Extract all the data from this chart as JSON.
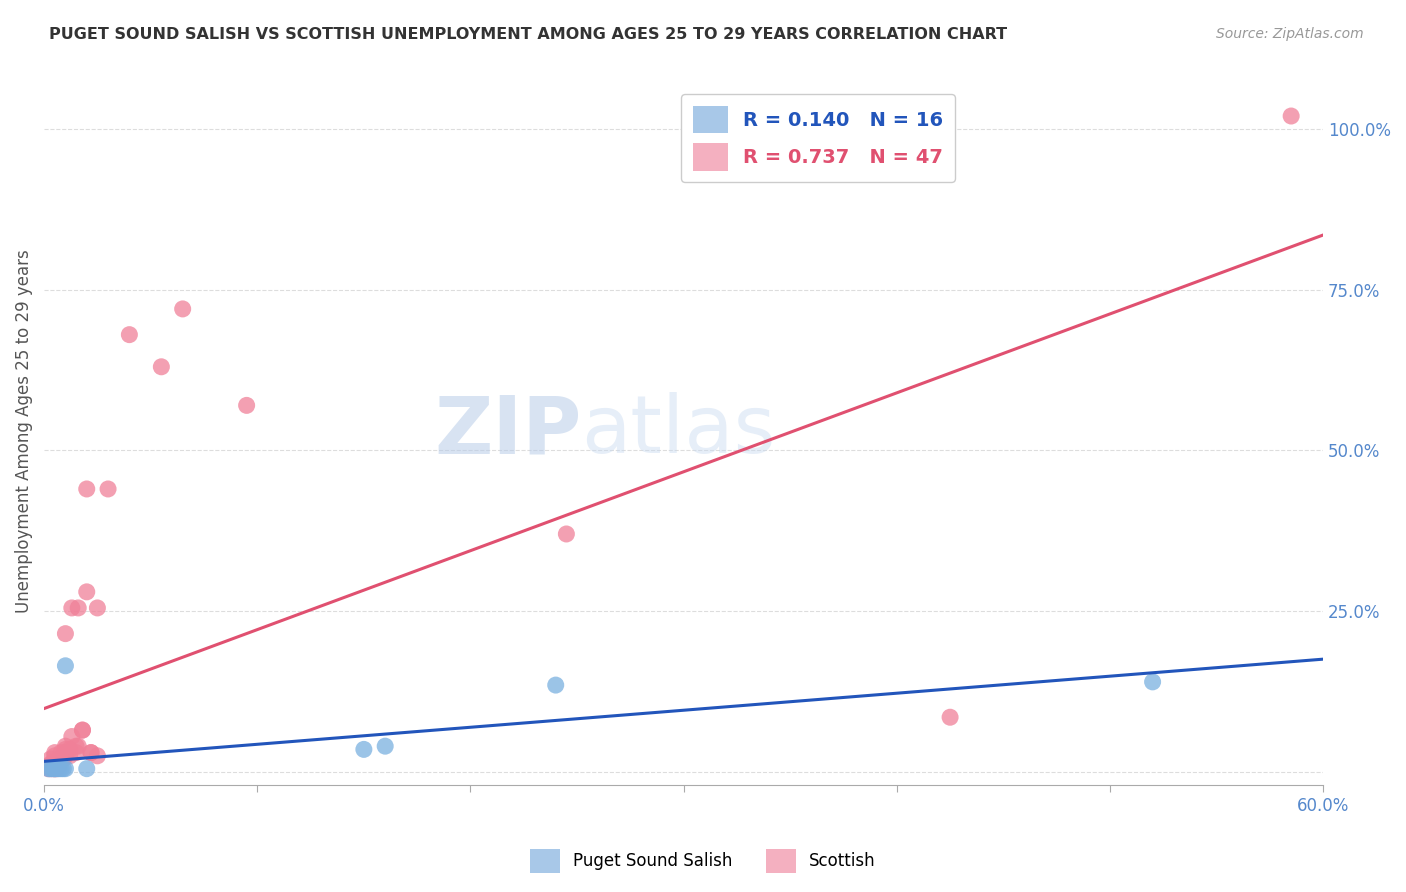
{
  "title": "PUGET SOUND SALISH VS SCOTTISH UNEMPLOYMENT AMONG AGES 25 TO 29 YEARS CORRELATION CHART",
  "source": "Source: ZipAtlas.com",
  "ylabel": "Unemployment Among Ages 25 to 29 years",
  "xlim": [
    0.0,
    0.6
  ],
  "ylim": [
    -0.02,
    1.08
  ],
  "x_ticks": [
    0.0,
    0.1,
    0.2,
    0.3,
    0.4,
    0.5,
    0.6
  ],
  "x_tick_labels": [
    "0.0%",
    "",
    "",
    "",
    "",
    "",
    "60.0%"
  ],
  "y_ticks": [
    0.0,
    0.25,
    0.5,
    0.75,
    1.0
  ],
  "y_tick_labels": [
    "",
    "25.0%",
    "50.0%",
    "75.0%",
    "100.0%"
  ],
  "puget_color": "#7ab0e0",
  "scottish_color": "#f08098",
  "puget_line_color": "#2255bb",
  "scottish_line_color": "#e05070",
  "watermark_zip": "ZIP",
  "watermark_atlas": "atlas",
  "puget_x": [
    0.002,
    0.003,
    0.004,
    0.005,
    0.005,
    0.006,
    0.007,
    0.008,
    0.009,
    0.01,
    0.01,
    0.02,
    0.15,
    0.16,
    0.24,
    0.52
  ],
  "puget_y": [
    0.005,
    0.005,
    0.005,
    0.005,
    0.005,
    0.005,
    0.005,
    0.005,
    0.005,
    0.005,
    0.165,
    0.005,
    0.035,
    0.04,
    0.135,
    0.14
  ],
  "scottish_x": [
    0.002,
    0.002,
    0.003,
    0.003,
    0.004,
    0.004,
    0.005,
    0.005,
    0.005,
    0.005,
    0.005,
    0.005,
    0.006,
    0.007,
    0.008,
    0.008,
    0.009,
    0.009,
    0.01,
    0.01,
    0.01,
    0.01,
    0.01,
    0.012,
    0.012,
    0.013,
    0.013,
    0.015,
    0.015,
    0.016,
    0.016,
    0.018,
    0.018,
    0.02,
    0.02,
    0.022,
    0.022,
    0.025,
    0.025,
    0.03,
    0.04,
    0.055,
    0.065,
    0.095,
    0.245,
    0.425,
    0.585
  ],
  "scottish_y": [
    0.005,
    0.01,
    0.005,
    0.02,
    0.005,
    0.015,
    0.005,
    0.005,
    0.01,
    0.015,
    0.025,
    0.03,
    0.005,
    0.01,
    0.02,
    0.03,
    0.02,
    0.025,
    0.025,
    0.03,
    0.035,
    0.04,
    0.215,
    0.025,
    0.035,
    0.055,
    0.255,
    0.03,
    0.04,
    0.04,
    0.255,
    0.065,
    0.065,
    0.28,
    0.44,
    0.03,
    0.03,
    0.025,
    0.255,
    0.44,
    0.68,
    0.63,
    0.72,
    0.57,
    0.37,
    0.085,
    1.02
  ],
  "background_color": "#ffffff",
  "grid_color": "#dddddd",
  "legend_patch_puget": "#a8c8e8",
  "legend_patch_scottish": "#f4b0c0"
}
